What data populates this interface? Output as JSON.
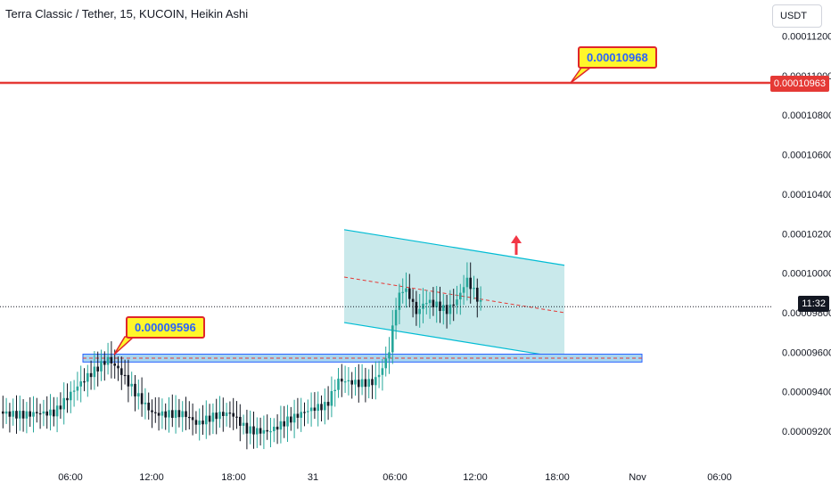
{
  "header": {
    "title": "Terra Classic / Tether, 15, KUCOIN, Heikin Ashi"
  },
  "currency_button": "USDT",
  "current_price_tag": "0.00010963",
  "time_tag": "11:32",
  "callouts": {
    "top": "0.00010968",
    "bottom": "0.00009596"
  },
  "colors": {
    "up": "#26a69a",
    "down": "#131722",
    "resistance_line": "#e53935",
    "channel_fill": "#b2dfe3",
    "channel_border": "#00bcd4",
    "support_fill": "#a9d6f0",
    "arrow": "#f23645",
    "callout_bg": "#fff62a",
    "callout_text": "#2962ff"
  },
  "chart_data": {
    "type": "candlestick",
    "title": "Terra Classic / Tether, 15, KUCOIN, Heikin Ashi",
    "y_axis": {
      "ticks": [
        "0.00011200",
        "0.00011000",
        "0.00010800",
        "0.00010600",
        "0.00010400",
        "0.00010200",
        "0.00010000",
        "0.00009800",
        "0.00009600",
        "0.00009400",
        "0.00009200"
      ],
      "range": [
        9.1e-05,
        0.0001125
      ]
    },
    "x_axis": {
      "ticks": [
        "06:00",
        "12:00",
        "18:00",
        "31",
        "06:00",
        "12:00",
        "18:00",
        "Nov",
        "06:00"
      ]
    },
    "resistance_level": 0.00010963,
    "support_zone": [
      9.55e-05,
      9.59e-05
    ],
    "last_price": 9.83e-05,
    "channel": {
      "upper": [
        [
          "31 04:45",
          0.0001022
        ],
        [
          "31 18:00",
          0.0001004
        ]
      ],
      "lower": [
        [
          "31 04:45",
          9.75e-05
        ],
        [
          "31 18:00",
          9.57e-05
        ]
      ],
      "median": [
        [
          "31 04:45",
          9.98e-05
        ],
        [
          "31 18:00",
          9.8e-05
        ]
      ]
    },
    "candles_approx": [
      {
        "t": "30 00:00",
        "close": 9.3e-05
      },
      {
        "t": "30 04:00",
        "close": 9.37e-05
      },
      {
        "t": "30 06:00",
        "close": 9.46e-05
      },
      {
        "t": "30 08:00",
        "close": 9.55e-05
      },
      {
        "t": "30 09:00",
        "close": 9.56e-05
      },
      {
        "t": "30 12:00",
        "close": 9.38e-05
      },
      {
        "t": "30 15:00",
        "close": 9.22e-05
      },
      {
        "t": "30 18:00",
        "close": 9.27e-05
      },
      {
        "t": "30 21:00",
        "close": 9.31e-05
      },
      {
        "t": "31 00:00",
        "close": 9.28e-05
      },
      {
        "t": "31 03:00",
        "close": 9.42e-05
      },
      {
        "t": "31 05:00",
        "close": 9.5e-05
      },
      {
        "t": "31 06:00",
        "close": 9.9e-05
      },
      {
        "t": "31 08:00",
        "close": 9.78e-05
      },
      {
        "t": "31 10:00",
        "close": 9.83e-05
      },
      {
        "t": "31 11:00",
        "close": 9.98e-05
      },
      {
        "t": "31 11:30",
        "close": 9.83e-05
      }
    ]
  }
}
